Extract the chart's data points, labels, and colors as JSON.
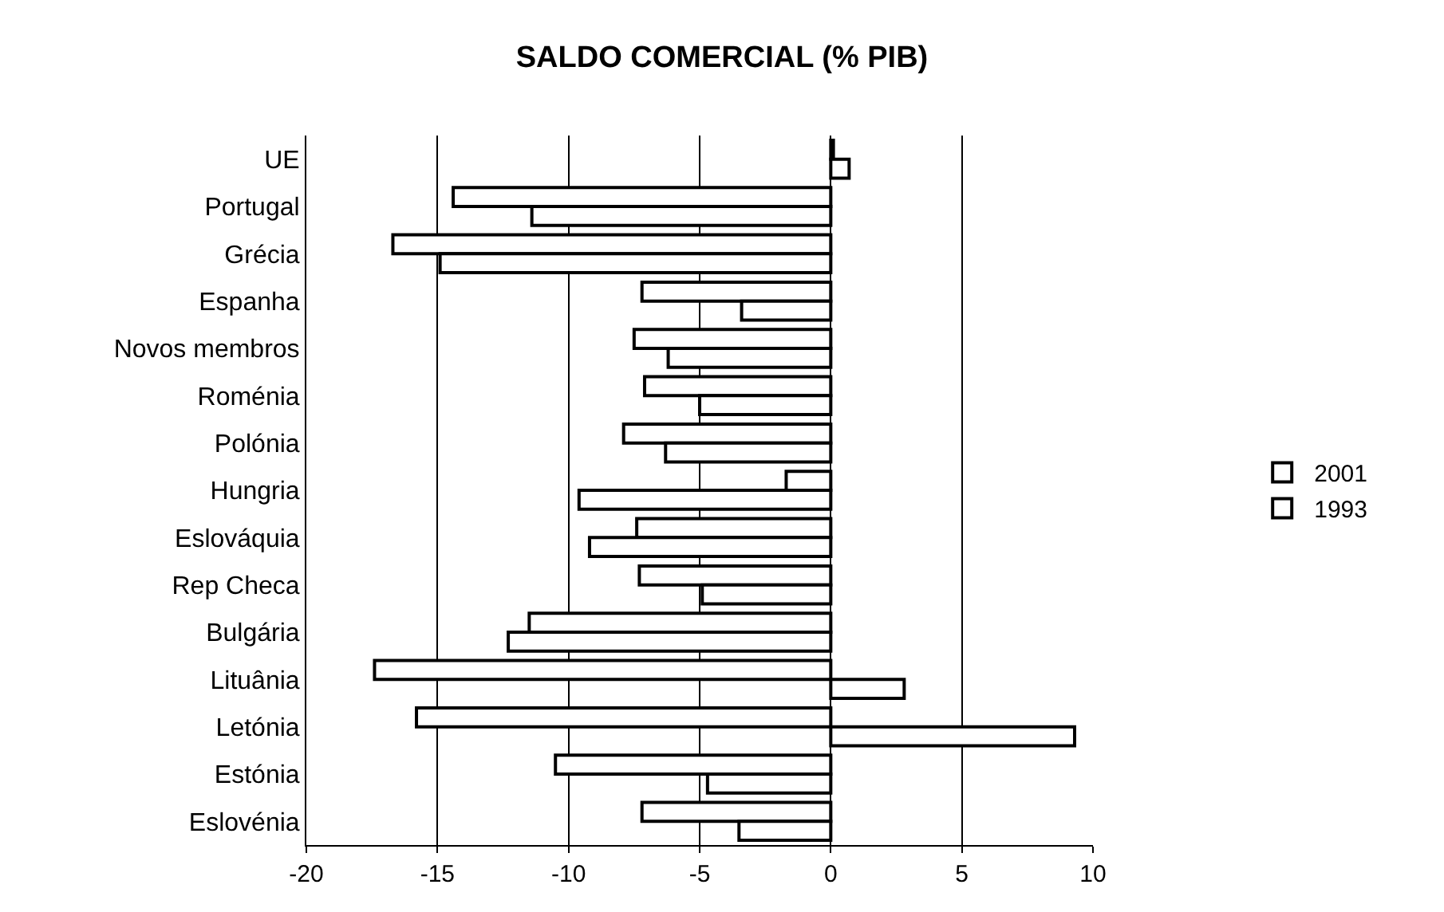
{
  "chart_data": {
    "type": "bar",
    "orientation": "horizontal",
    "title": "SALDO COMERCIAL (% PIB)",
    "categories": [
      "UE",
      "Portugal",
      "Grécia",
      "Espanha",
      "Novos membros",
      "Roménia",
      "Polónia",
      "Hungria",
      "Eslováquia",
      "Rep Checa",
      "Bulgária",
      "Lituânia",
      "Letónia",
      "Estónia",
      "Eslovénia"
    ],
    "series": [
      {
        "name": "2001",
        "color": "#ffffff",
        "values": [
          0.1,
          -14.4,
          -16.7,
          -7.2,
          -7.5,
          -7.1,
          -7.9,
          -1.7,
          -7.4,
          -7.3,
          -11.5,
          -17.4,
          -15.8,
          -10.5,
          -7.2
        ]
      },
      {
        "name": "1993",
        "color": "#ffffff",
        "values": [
          0.7,
          -11.4,
          -14.9,
          -3.4,
          -6.2,
          -5.0,
          -6.3,
          -9.6,
          -9.2,
          -4.9,
          -12.3,
          2.8,
          9.3,
          -4.7,
          -3.5
        ]
      }
    ],
    "xlim": [
      -20,
      10
    ],
    "xticks": [
      -20,
      -15,
      -10,
      -5,
      0,
      5,
      10
    ],
    "grid": "x",
    "legend": "right"
  }
}
